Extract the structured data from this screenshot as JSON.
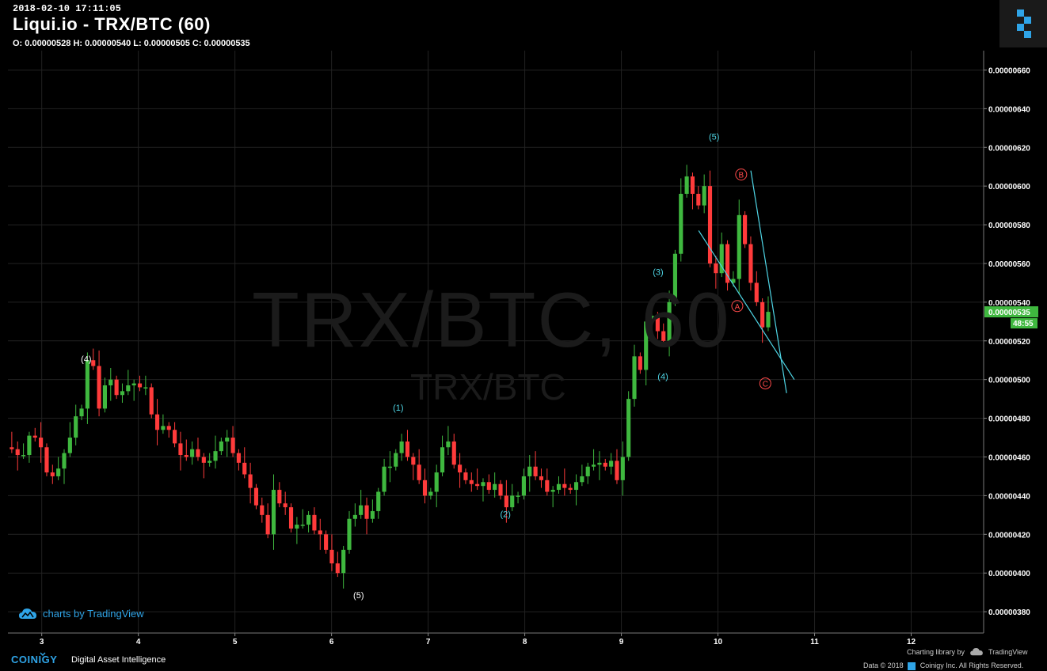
{
  "header": {
    "timestamp": "2018-02-10 17:11:05",
    "title": "Liqui.io - TRX/BTC (60)",
    "ohlc": "O: 0.00000528 H: 0.00000540 L: 0.00000505 C: 0.00000535"
  },
  "watermark": {
    "big": "TRX/BTC, 60",
    "small": "TRX/BTC"
  },
  "badges": {
    "tradingview": "charts by TradingView",
    "coinigy_name": "COINIGY",
    "coinigy_tag": "Digital Asset Intelligence",
    "charting_library": "Charting library by",
    "tradingview_logo": "TradingView",
    "data_credit": "Data © 2018",
    "coinigy_credit": "Coinigy Inc. All Rights Reserved."
  },
  "colors": {
    "up": "#3fb83f",
    "down": "#ff3b3b",
    "grid": "#222222",
    "annot_cyan": "#4fd6e6",
    "annot_red": "#ff4a4a",
    "bg": "#000000"
  },
  "chart_data": {
    "type": "candlestick",
    "x_ticks": [
      "3",
      "4",
      "5",
      "6",
      "7",
      "8",
      "9",
      "10",
      "11",
      "12"
    ],
    "y_ticks": [
      "0.00000380",
      "0.00000400",
      "0.00000420",
      "0.00000440",
      "0.00000460",
      "0.00000480",
      "0.00000500",
      "0.00000520",
      "0.00000540",
      "0.00000560",
      "0.00000580",
      "0.00000600",
      "0.00000620",
      "0.00000640",
      "0.00000660"
    ],
    "ylim": [
      3.69e-06,
      6.7e-06
    ],
    "xlim": [
      2.65,
      12.75
    ],
    "last_price": "0.00000535",
    "countdown": "48:55",
    "closes": [
      464,
      461,
      461,
      471,
      470,
      465,
      452,
      450,
      454,
      462,
      470,
      481,
      485,
      510,
      507,
      485,
      497,
      500,
      492,
      494,
      497,
      498,
      496,
      496,
      482,
      474,
      476,
      474,
      467,
      461,
      460,
      464,
      460,
      457,
      458,
      463,
      468,
      470,
      462,
      457,
      451,
      444,
      435,
      430,
      420,
      443,
      436,
      434,
      423,
      425,
      425,
      430,
      422,
      420,
      412,
      405,
      400,
      412,
      428,
      430,
      435,
      428,
      432,
      442,
      455,
      455,
      462,
      468,
      460,
      456,
      448,
      440,
      442,
      452,
      465,
      468,
      456,
      452,
      448,
      446,
      445,
      447,
      443,
      446,
      440,
      434,
      440,
      440,
      450,
      455,
      450,
      448,
      442,
      443,
      446,
      444,
      443,
      447,
      450,
      455,
      456,
      457,
      455,
      458,
      448,
      460,
      490,
      512,
      505,
      530,
      533,
      525,
      520,
      540,
      565,
      596,
      605,
      596,
      590,
      600,
      560,
      555,
      570,
      550,
      552,
      585,
      570,
      550,
      540,
      527,
      535
    ],
    "annotations": [
      {
        "text": "(4)",
        "color": "#ffffff",
        "x": 3.46,
        "y": 509
      },
      {
        "text": "(5)",
        "color": "#ffffff",
        "x": 6.28,
        "y": 387
      },
      {
        "text": "(1)",
        "color": "#4fd6e6",
        "x": 6.69,
        "y": 484
      },
      {
        "text": "(2)",
        "color": "#4fd6e6",
        "x": 7.8,
        "y": 429
      },
      {
        "text": "(3)",
        "color": "#4fd6e6",
        "x": 9.38,
        "y": 554
      },
      {
        "text": "(4)",
        "color": "#4fd6e6",
        "x": 9.43,
        "y": 500
      },
      {
        "text": "(5)",
        "color": "#4fd6e6",
        "x": 9.96,
        "y": 624
      }
    ],
    "circled_labels": [
      {
        "text": "A",
        "x": 10.2,
        "y": 538
      },
      {
        "text": "B",
        "x": 10.24,
        "y": 606
      },
      {
        "text": "C",
        "x": 10.49,
        "y": 498
      }
    ],
    "trend_lines": [
      {
        "from": [
          9.8,
          577
        ],
        "to": [
          10.79,
          500
        ]
      },
      {
        "from": [
          10.34,
          608
        ],
        "to": [
          10.71,
          493
        ]
      }
    ]
  }
}
